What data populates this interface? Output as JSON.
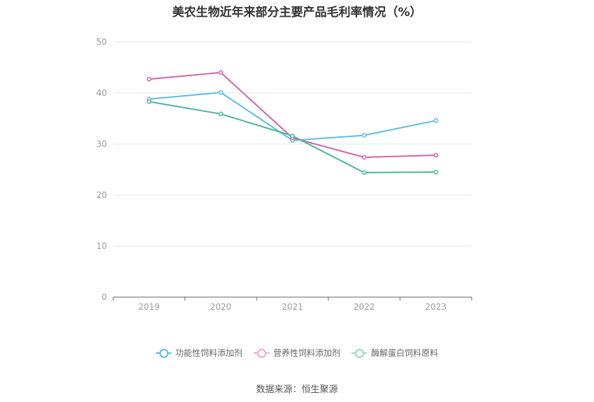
{
  "chart_data": {
    "type": "line",
    "title": "美农生物近年来部分主要产品毛利率情况（%）",
    "categories": [
      "2019",
      "2020",
      "2021",
      "2022",
      "2023"
    ],
    "ylim": [
      0,
      50
    ],
    "yticks": [
      "0",
      "10",
      "20",
      "30",
      "40",
      "50"
    ],
    "grid": true,
    "legend_position": "bottom",
    "series": [
      {
        "name": "功能性饲料添加剂",
        "color": "#5bbbe6",
        "values": [
          38.8,
          40.1,
          30.7,
          31.7,
          34.6
        ]
      },
      {
        "name": "营养性饲料添加剂",
        "color": "#d363ae",
        "values": [
          42.7,
          44.0,
          31.2,
          27.4,
          27.8
        ]
      },
      {
        "name": "酶解蛋白饲料原料",
        "color": "#4db596",
        "values": [
          38.3,
          35.9,
          31.6,
          24.4,
          24.5
        ]
      }
    ]
  },
  "legend": {
    "legend_colors": [
      "#5bbbe6",
      "#f0a6cf",
      "#9fd6c4"
    ]
  },
  "source": "数据来源：恒生聚源"
}
